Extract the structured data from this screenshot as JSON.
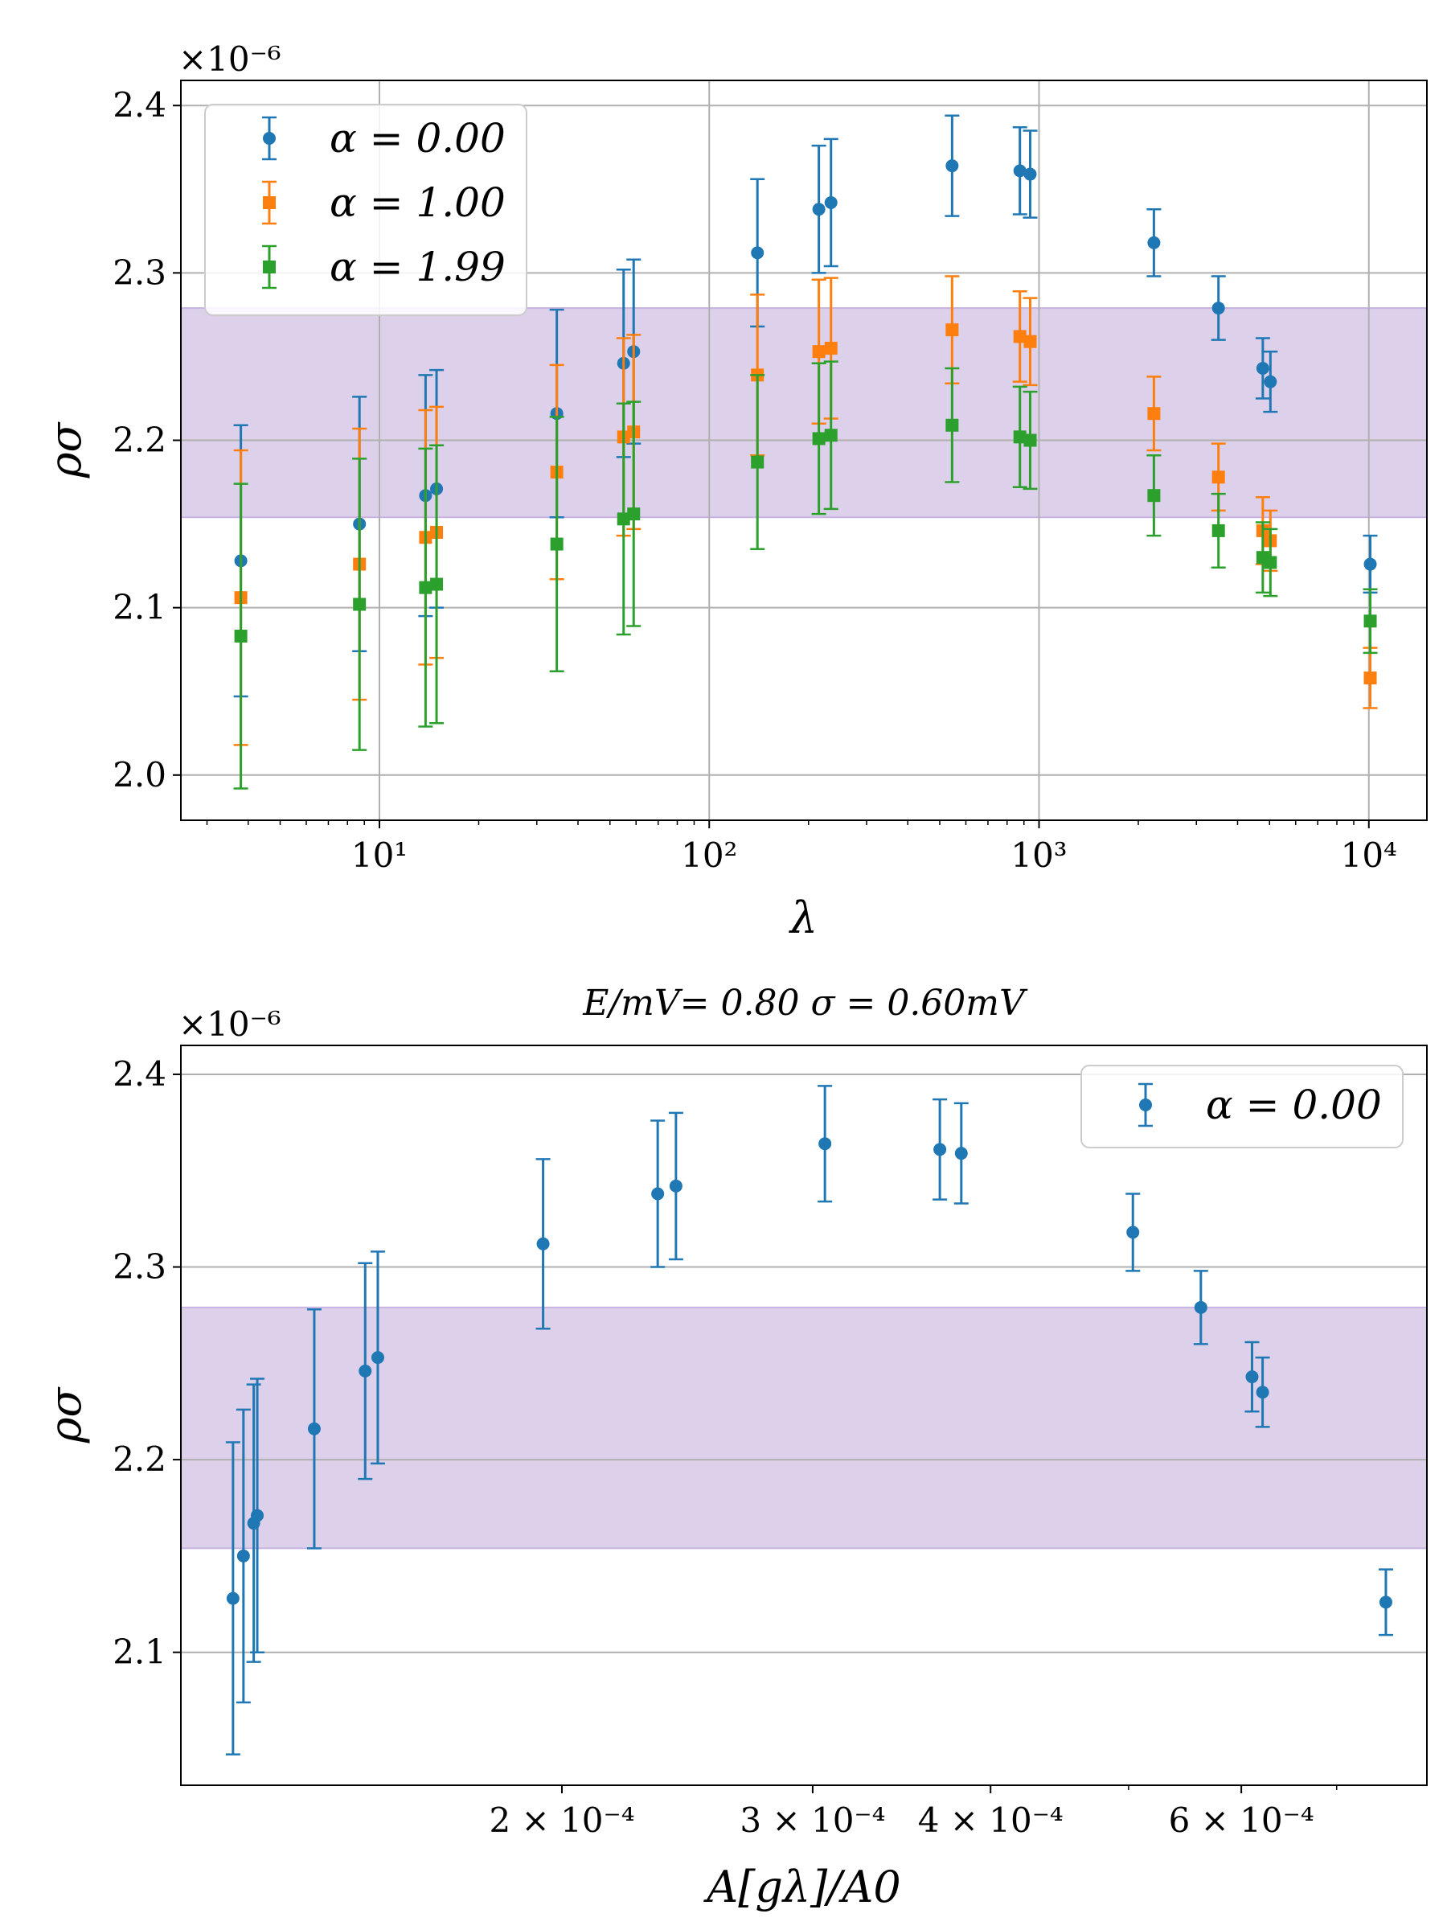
{
  "chart_data": [
    {
      "type": "scatter",
      "title": "",
      "xlabel": "λ",
      "ylabel": "ρσ",
      "xscale": "log",
      "xlim": [
        2.5,
        15000
      ],
      "ylim": [
        1.973,
        2.415
      ],
      "x_ticks": [
        {
          "value": 10,
          "label": "10¹"
        },
        {
          "value": 100,
          "label": "10²"
        },
        {
          "value": 1000,
          "label": "10³"
        },
        {
          "value": 10000,
          "label": "10⁴"
        }
      ],
      "y_ticks": [
        2.0,
        2.1,
        2.2,
        2.3,
        2.4
      ],
      "y_tick_labels": [
        "2.0",
        "2.1",
        "2.2",
        "2.3",
        "2.4"
      ],
      "y_multiplier": "×10⁻⁶",
      "grid": true,
      "legend": "upper-left",
      "band": {
        "ymin": 2.154,
        "ymax": 2.279,
        "color": "#dcd0ea"
      },
      "series": [
        {
          "name": "α = 0.00",
          "color": "#1f77b4",
          "marker": "circle",
          "x": [
            3.8,
            8.7,
            13.8,
            14.9,
            34.5,
            55,
            59,
            140,
            215,
            234,
            545,
            875,
            940,
            2230,
            3500,
            4770,
            5030,
            10100
          ],
          "y": [
            2.128,
            2.15,
            2.167,
            2.171,
            2.216,
            2.246,
            2.253,
            2.312,
            2.338,
            2.342,
            2.364,
            2.361,
            2.359,
            2.318,
            2.279,
            2.243,
            2.235,
            2.126
          ],
          "err": [
            0.081,
            0.076,
            0.072,
            0.071,
            0.062,
            0.056,
            0.055,
            0.044,
            0.038,
            0.038,
            0.03,
            0.026,
            0.026,
            0.02,
            0.019,
            0.018,
            0.018,
            0.017
          ]
        },
        {
          "name": "α = 1.00",
          "color": "#ff7f0e",
          "marker": "square",
          "x": [
            3.8,
            8.7,
            13.8,
            14.9,
            34.5,
            55,
            59,
            140,
            215,
            234,
            545,
            875,
            940,
            2230,
            3500,
            4770,
            5030,
            10100
          ],
          "y": [
            2.106,
            2.126,
            2.142,
            2.145,
            2.181,
            2.202,
            2.205,
            2.239,
            2.253,
            2.255,
            2.266,
            2.262,
            2.259,
            2.216,
            2.178,
            2.146,
            2.14,
            2.058
          ],
          "err": [
            0.088,
            0.081,
            0.076,
            0.075,
            0.064,
            0.059,
            0.058,
            0.048,
            0.043,
            0.042,
            0.032,
            0.027,
            0.026,
            0.022,
            0.02,
            0.02,
            0.018,
            0.018
          ]
        },
        {
          "name": "α = 1.99",
          "color": "#2ca02c",
          "marker": "square",
          "x": [
            3.8,
            8.7,
            13.8,
            14.9,
            34.5,
            55,
            59,
            140,
            215,
            234,
            545,
            875,
            940,
            2230,
            3500,
            4770,
            5030,
            10100
          ],
          "y": [
            2.083,
            2.102,
            2.112,
            2.114,
            2.138,
            2.153,
            2.156,
            2.187,
            2.201,
            2.203,
            2.209,
            2.202,
            2.2,
            2.167,
            2.146,
            2.13,
            2.127,
            2.092
          ],
          "err": [
            0.091,
            0.087,
            0.083,
            0.083,
            0.076,
            0.069,
            0.067,
            0.052,
            0.045,
            0.044,
            0.034,
            0.03,
            0.029,
            0.024,
            0.022,
            0.021,
            0.02,
            0.019
          ]
        }
      ]
    },
    {
      "type": "scatter",
      "title": "E/mV= 0.80 σ = 0.60mV",
      "xlabel": "A[gλ]/A0",
      "ylabel": "ρσ",
      "xscale": "log",
      "xlim": [
        0.000108,
        0.00081
      ],
      "ylim": [
        2.031,
        2.415
      ],
      "x_ticks": [
        {
          "value": 0.0002,
          "label": "2 × 10⁻⁴"
        },
        {
          "value": 0.0003,
          "label": "3 × 10⁻⁴"
        },
        {
          "value": 0.0004,
          "label": "4 × 10⁻⁴"
        },
        {
          "value": 0.0006,
          "label": "6 × 10⁻⁴"
        }
      ],
      "x_minor_ticks": [
        0.0005,
        0.0007
      ],
      "y_ticks": [
        2.1,
        2.2,
        2.3,
        2.4
      ],
      "y_tick_labels": [
        "2.1",
        "2.2",
        "2.3",
        "2.4"
      ],
      "y_multiplier": "×10⁻⁶",
      "grid": true,
      "grid_axis": "y",
      "legend": "upper-right",
      "band": {
        "ymin": 2.154,
        "ymax": 2.279,
        "color": "#dcd0ea"
      },
      "series": [
        {
          "name": "α = 0.00",
          "color": "#1f77b4",
          "marker": "circle",
          "x": [
            0.0001175,
            0.0001195,
            0.0001215,
            0.0001222,
            0.000134,
            0.0001455,
            0.0001485,
            0.000194,
            0.0002335,
            0.0002405,
            0.000306,
            0.0003685,
            0.0003815,
            0.0005035,
            0.000562,
            0.0006105,
            0.000621,
            0.000758
          ],
          "y": [
            2.128,
            2.15,
            2.167,
            2.171,
            2.216,
            2.246,
            2.253,
            2.312,
            2.338,
            2.342,
            2.364,
            2.361,
            2.359,
            2.318,
            2.279,
            2.243,
            2.235,
            2.126
          ],
          "err": [
            0.081,
            0.076,
            0.072,
            0.071,
            0.062,
            0.056,
            0.055,
            0.044,
            0.038,
            0.038,
            0.03,
            0.026,
            0.026,
            0.02,
            0.019,
            0.018,
            0.018,
            0.017
          ]
        }
      ]
    }
  ]
}
